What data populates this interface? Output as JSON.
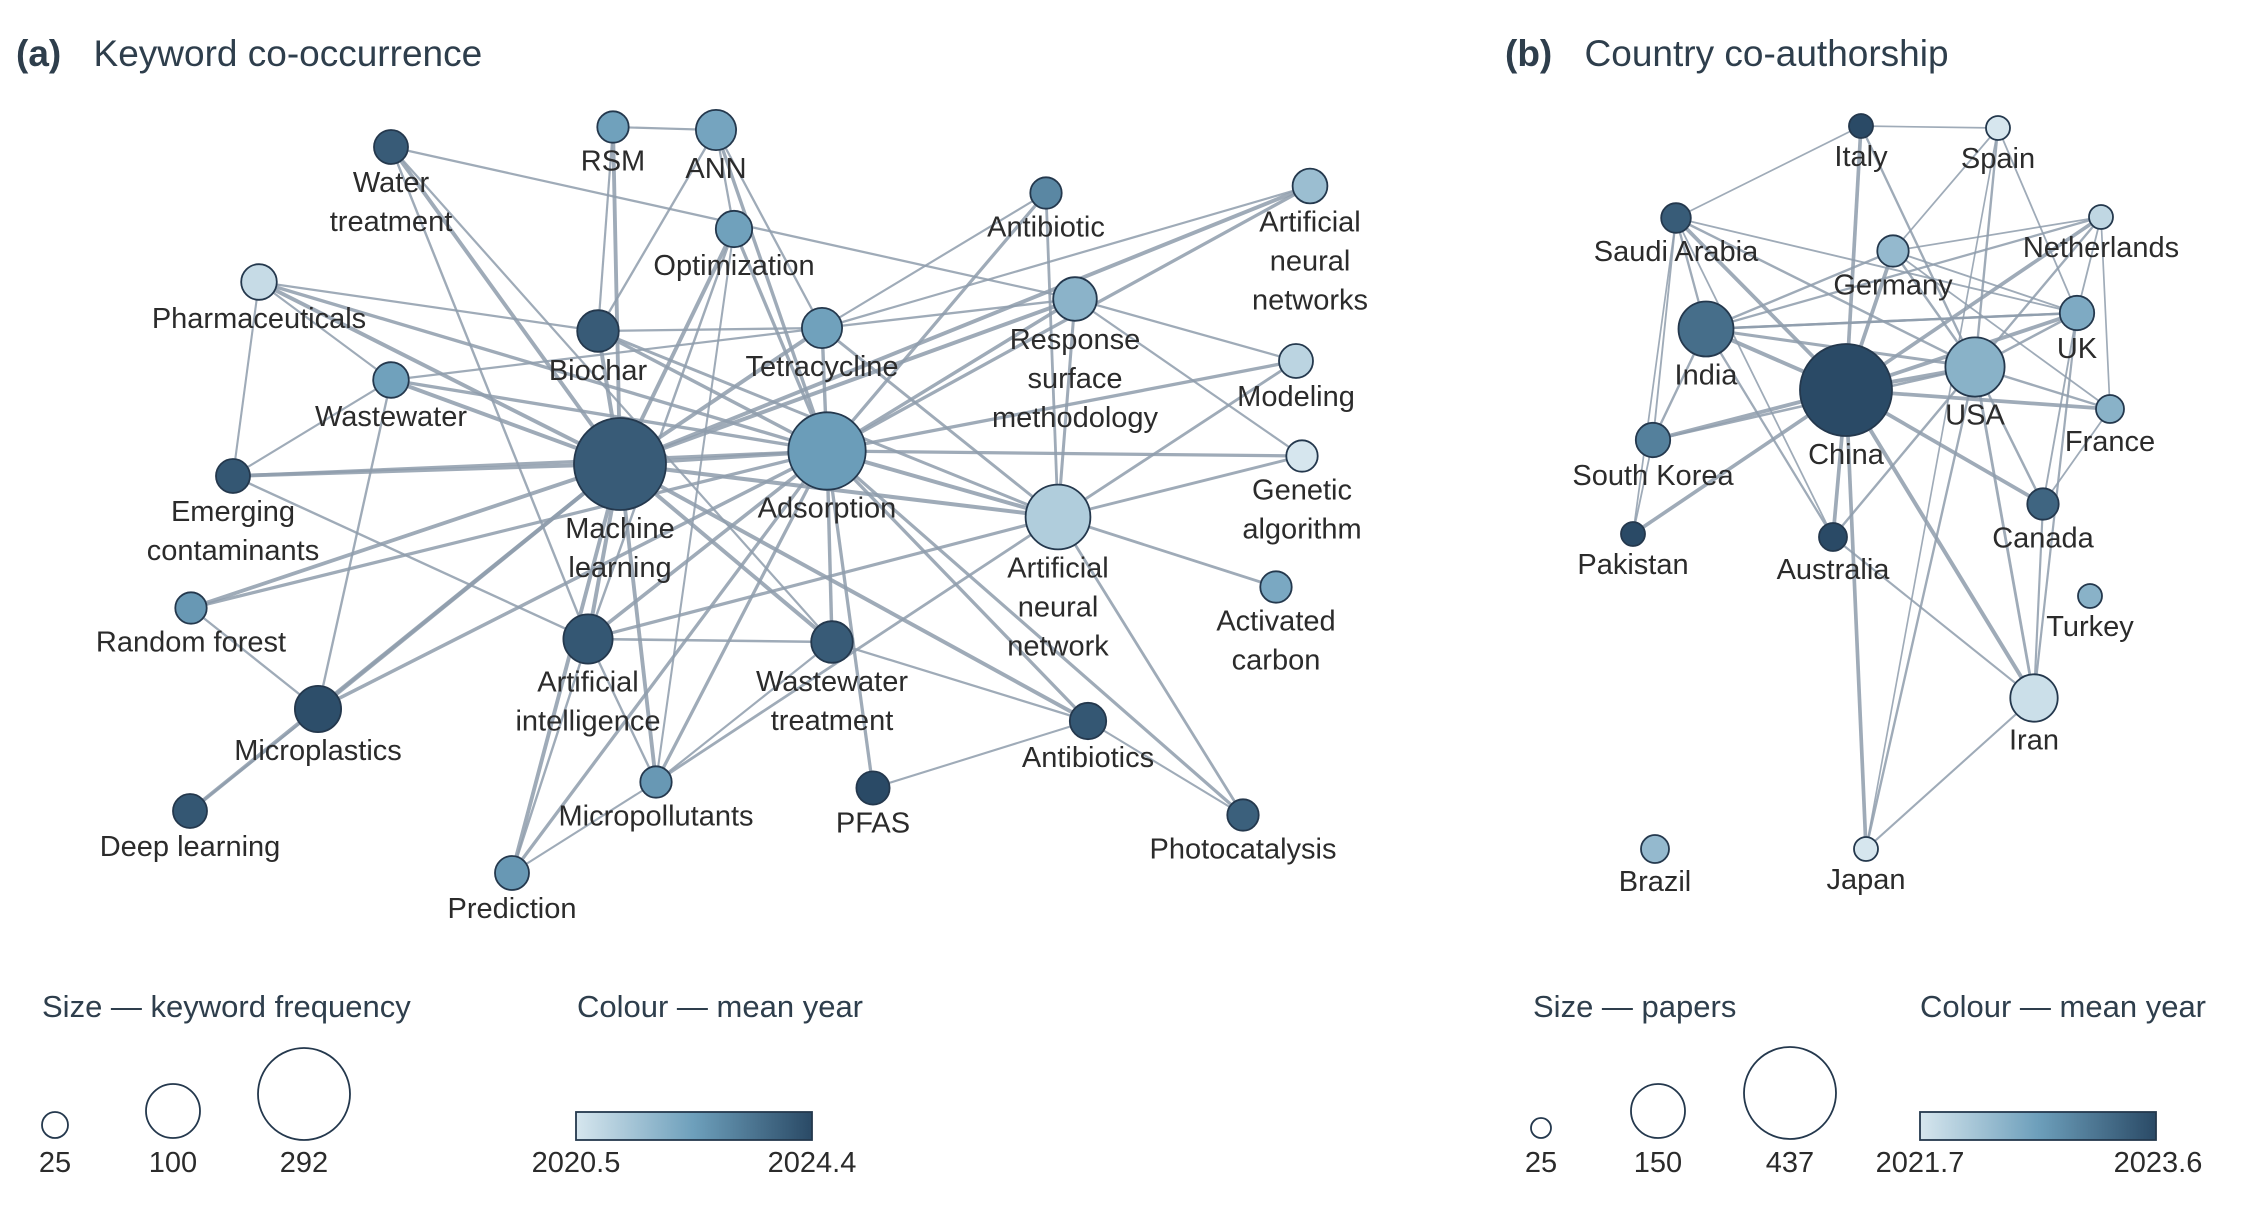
{
  "colors": {
    "scale": [
      "#d6e6ee",
      "#6d9fbb",
      "#2a4a66"
    ],
    "edge": "#8e9cab",
    "node_stroke": "#24384d",
    "text": "#2e3e4c"
  },
  "panel_a": {
    "letter": "(a)",
    "title": "Keyword co-occurrence",
    "nodes": [
      {
        "id": "water_treatment",
        "label": [
          "Water",
          "treatment"
        ],
        "size": 46,
        "year": 2024.0
      },
      {
        "id": "rsm",
        "label": [
          "RSM"
        ],
        "size": 40,
        "year": 2022.4
      },
      {
        "id": "ann",
        "label": [
          "ANN"
        ],
        "size": 62,
        "year": 2022.3
      },
      {
        "id": "optimization",
        "label": [
          "Optimization"
        ],
        "size": 52,
        "year": 2022.4
      },
      {
        "id": "antibiotic",
        "label": [
          "Antibiotic"
        ],
        "size": 40,
        "year": 2023.0
      },
      {
        "id": "artificial_neural_networks",
        "label": [
          "Artificial",
          "neural",
          "networks"
        ],
        "size": 48,
        "year": 2021.6
      },
      {
        "id": "pharmaceuticals",
        "label": [
          "Pharmaceuticals"
        ],
        "size": 50,
        "year": 2020.8
      },
      {
        "id": "biochar",
        "label": [
          "Biochar"
        ],
        "size": 66,
        "year": 2024.0
      },
      {
        "id": "tetracycline",
        "label": [
          "Tetracycline"
        ],
        "size": 62,
        "year": 2022.4
      },
      {
        "id": "response_surface_methodology",
        "label": [
          "Response",
          "surface",
          "methodology"
        ],
        "size": 72,
        "year": 2021.9
      },
      {
        "id": "modeling",
        "label": [
          "Modeling"
        ],
        "size": 46,
        "year": 2021.0
      },
      {
        "id": "wastewater",
        "label": [
          "Wastewater"
        ],
        "size": 50,
        "year": 2022.4
      },
      {
        "id": "emerging_contaminants",
        "label": [
          "Emerging",
          "contaminants"
        ],
        "size": 46,
        "year": 2024.1
      },
      {
        "id": "genetic_algorithm",
        "label": [
          "Genetic",
          "algorithm"
        ],
        "size": 40,
        "year": 2020.5
      },
      {
        "id": "machine_learning",
        "label": [
          "Machine",
          "learning"
        ],
        "size": 292,
        "year": 2024.0
      },
      {
        "id": "adsorption",
        "label": [
          "Adsorption"
        ],
        "size": 210,
        "year": 2022.5
      },
      {
        "id": "artificial_neural_network",
        "label": [
          "Artificial",
          "neural",
          "network"
        ],
        "size": 150,
        "year": 2021.2
      },
      {
        "id": "random_forest",
        "label": [
          "Random forest"
        ],
        "size": 40,
        "year": 2022.6
      },
      {
        "id": "activated_carbon",
        "label": [
          "Activated",
          "carbon"
        ],
        "size": 40,
        "year": 2022.2
      },
      {
        "id": "artificial_intelligence",
        "label": [
          "Artificial",
          "intelligence"
        ],
        "size": 90,
        "year": 2024.1
      },
      {
        "id": "wastewater_treatment",
        "label": [
          "Wastewater",
          "treatment"
        ],
        "size": 66,
        "year": 2024.0
      },
      {
        "id": "microplastics",
        "label": [
          "Microplastics"
        ],
        "size": 80,
        "year": 2024.3
      },
      {
        "id": "antibiotics",
        "label": [
          "Antibiotics"
        ],
        "size": 52,
        "year": 2024.1
      },
      {
        "id": "micropollutants",
        "label": [
          "Micropollutants"
        ],
        "size": 40,
        "year": 2022.6
      },
      {
        "id": "pfas",
        "label": [
          "PFAS"
        ],
        "size": 44,
        "year": 2024.4
      },
      {
        "id": "photocatalysis",
        "label": [
          "Photocatalysis"
        ],
        "size": 40,
        "year": 2023.9
      },
      {
        "id": "deep_learning",
        "label": [
          "Deep learning"
        ],
        "size": 46,
        "year": 2024.1
      },
      {
        "id": "prediction",
        "label": [
          "Prediction"
        ],
        "size": 46,
        "year": 2022.6
      }
    ],
    "edges": [
      [
        "rsm",
        "ann"
      ],
      [
        "rsm",
        "biochar"
      ],
      [
        "rsm",
        "machine_learning"
      ],
      [
        "ann",
        "optimization"
      ],
      [
        "ann",
        "tetracycline"
      ],
      [
        "ann",
        "adsorption"
      ],
      [
        "ann",
        "biochar"
      ],
      [
        "optimization",
        "adsorption"
      ],
      [
        "optimization",
        "machine_learning"
      ],
      [
        "optimization",
        "artificial_intelligence"
      ],
      [
        "optimization",
        "micropollutants"
      ],
      [
        "water_treatment",
        "machine_learning"
      ],
      [
        "water_treatment",
        "wastewater_treatment"
      ],
      [
        "water_treatment",
        "response_surface_methodology"
      ],
      [
        "water_treatment",
        "artificial_intelligence"
      ],
      [
        "antibiotic",
        "tetracycline"
      ],
      [
        "antibiotic",
        "artificial_neural_network"
      ],
      [
        "antibiotic",
        "adsorption"
      ],
      [
        "artificial_neural_networks",
        "tetracycline"
      ],
      [
        "artificial_neural_networks",
        "adsorption"
      ],
      [
        "artificial_neural_networks",
        "machine_learning"
      ],
      [
        "pharmaceuticals",
        "machine_learning"
      ],
      [
        "pharmaceuticals",
        "emerging_contaminants"
      ],
      [
        "pharmaceuticals",
        "adsorption"
      ],
      [
        "pharmaceuticals",
        "biochar"
      ],
      [
        "pharmaceuticals",
        "wastewater"
      ],
      [
        "biochar",
        "machine_learning"
      ],
      [
        "biochar",
        "adsorption"
      ],
      [
        "biochar",
        "tetracycline"
      ],
      [
        "biochar",
        "artificial_neural_network"
      ],
      [
        "tetracycline",
        "adsorption"
      ],
      [
        "tetracycline",
        "machine_learning"
      ],
      [
        "tetracycline",
        "artificial_neural_network"
      ],
      [
        "tetracycline",
        "response_surface_methodology"
      ],
      [
        "tetracycline",
        "wastewater"
      ],
      [
        "response_surface_methodology",
        "adsorption"
      ],
      [
        "response_surface_methodology",
        "artificial_neural_network"
      ],
      [
        "response_surface_methodology",
        "modeling"
      ],
      [
        "response_surface_methodology",
        "machine_learning"
      ],
      [
        "response_surface_methodology",
        "genetic_algorithm"
      ],
      [
        "modeling",
        "adsorption"
      ],
      [
        "modeling",
        "artificial_neural_network"
      ],
      [
        "wastewater",
        "machine_learning"
      ],
      [
        "wastewater",
        "adsorption"
      ],
      [
        "wastewater",
        "microplastics"
      ],
      [
        "wastewater",
        "emerging_contaminants"
      ],
      [
        "emerging_contaminants",
        "machine_learning"
      ],
      [
        "emerging_contaminants",
        "adsorption"
      ],
      [
        "emerging_contaminants",
        "artificial_intelligence"
      ],
      [
        "genetic_algorithm",
        "artificial_neural_network"
      ],
      [
        "genetic_algorithm",
        "adsorption"
      ],
      [
        "machine_learning",
        "adsorption"
      ],
      [
        "machine_learning",
        "artificial_neural_network"
      ],
      [
        "machine_learning",
        "artificial_intelligence"
      ],
      [
        "machine_learning",
        "wastewater_treatment"
      ],
      [
        "machine_learning",
        "microplastics"
      ],
      [
        "machine_learning",
        "antibiotics"
      ],
      [
        "machine_learning",
        "random_forest"
      ],
      [
        "machine_learning",
        "prediction"
      ],
      [
        "machine_learning",
        "micropollutants"
      ],
      [
        "machine_learning",
        "deep_learning"
      ],
      [
        "adsorption",
        "artificial_neural_network"
      ],
      [
        "adsorption",
        "artificial_intelligence"
      ],
      [
        "adsorption",
        "wastewater_treatment"
      ],
      [
        "adsorption",
        "antibiotics"
      ],
      [
        "adsorption",
        "microplastics"
      ],
      [
        "adsorption",
        "pfas"
      ],
      [
        "adsorption",
        "photocatalysis"
      ],
      [
        "adsorption",
        "micropollutants"
      ],
      [
        "adsorption",
        "prediction"
      ],
      [
        "adsorption",
        "random_forest"
      ],
      [
        "artificial_neural_network",
        "activated_carbon"
      ],
      [
        "artificial_neural_network",
        "artificial_intelligence"
      ],
      [
        "artificial_neural_network",
        "micropollutants"
      ],
      [
        "artificial_neural_network",
        "photocatalysis"
      ],
      [
        "artificial_intelligence",
        "wastewater_treatment"
      ],
      [
        "artificial_intelligence",
        "prediction"
      ],
      [
        "artificial_intelligence",
        "micropollutants"
      ],
      [
        "wastewater_treatment",
        "antibiotics"
      ],
      [
        "wastewater_treatment",
        "micropollutants"
      ],
      [
        "antibiotics",
        "photocatalysis"
      ],
      [
        "microplastics",
        "deep_learning"
      ],
      [
        "microplastics",
        "random_forest"
      ],
      [
        "micropollutants",
        "prediction"
      ],
      [
        "antibiotics",
        "pfas"
      ]
    ],
    "size_legend": {
      "title": "Size — keyword frequency",
      "ticks": [
        "25",
        "100",
        "292"
      ],
      "values": [
        25,
        100,
        292
      ]
    },
    "colour_legend": {
      "title": "Colour — mean year",
      "min": "2020.5",
      "max": "2024.4"
    }
  },
  "panel_b": {
    "letter": "(b)",
    "title": "Country co-authorship",
    "nodes": [
      {
        "id": "italy",
        "label": [
          "Italy"
        ],
        "size": 25,
        "year": 2023.6
      },
      {
        "id": "spain",
        "label": [
          "Spain"
        ],
        "size": 25,
        "year": 2021.7
      },
      {
        "id": "saudi_arabia",
        "label": [
          "Saudi Arabia"
        ],
        "size": 40,
        "year": 2023.4
      },
      {
        "id": "netherlands",
        "label": [
          "Netherlands"
        ],
        "size": 25,
        "year": 2021.9
      },
      {
        "id": "germany",
        "label": [
          "Germany"
        ],
        "size": 45,
        "year": 2022.3
      },
      {
        "id": "uk",
        "label": [
          "UK"
        ],
        "size": 55,
        "year": 2022.5
      },
      {
        "id": "india",
        "label": [
          "India"
        ],
        "size": 150,
        "year": 2023.2
      },
      {
        "id": "usa",
        "label": [
          "USA"
        ],
        "size": 175,
        "year": 2022.4
      },
      {
        "id": "china",
        "label": [
          "China"
        ],
        "size": 437,
        "year": 2023.6
      },
      {
        "id": "france",
        "label": [
          "France"
        ],
        "size": 35,
        "year": 2022.4
      },
      {
        "id": "south_korea",
        "label": [
          "South Korea"
        ],
        "size": 55,
        "year": 2023.0
      },
      {
        "id": "canada",
        "label": [
          "Canada"
        ],
        "size": 45,
        "year": 2023.3
      },
      {
        "id": "pakistan",
        "label": [
          "Pakistan"
        ],
        "size": 25,
        "year": 2023.6
      },
      {
        "id": "australia",
        "label": [
          "Australia"
        ],
        "size": 35,
        "year": 2023.6
      },
      {
        "id": "turkey",
        "label": [
          "Turkey"
        ],
        "size": 25,
        "year": 2022.4
      },
      {
        "id": "iran",
        "label": [
          "Iran"
        ],
        "size": 110,
        "year": 2021.8
      },
      {
        "id": "brazil",
        "label": [
          "Brazil"
        ],
        "size": 35,
        "year": 2022.3
      },
      {
        "id": "japan",
        "label": [
          "Japan"
        ],
        "size": 25,
        "year": 2021.7
      }
    ],
    "edges": [
      [
        "italy",
        "spain"
      ],
      [
        "italy",
        "saudi_arabia"
      ],
      [
        "italy",
        "usa"
      ],
      [
        "italy",
        "china"
      ],
      [
        "spain",
        "usa"
      ],
      [
        "spain",
        "germany"
      ],
      [
        "spain",
        "uk"
      ],
      [
        "spain",
        "japan"
      ],
      [
        "saudi_arabia",
        "china"
      ],
      [
        "saudi_arabia",
        "india"
      ],
      [
        "saudi_arabia",
        "south_korea"
      ],
      [
        "saudi_arabia",
        "usa"
      ],
      [
        "saudi_arabia",
        "pakistan"
      ],
      [
        "saudi_arabia",
        "australia"
      ],
      [
        "saudi_arabia",
        "uk"
      ],
      [
        "netherlands",
        "china"
      ],
      [
        "netherlands",
        "usa"
      ],
      [
        "netherlands",
        "uk"
      ],
      [
        "netherlands",
        "germany"
      ],
      [
        "netherlands",
        "france"
      ],
      [
        "netherlands",
        "india"
      ],
      [
        "germany",
        "china"
      ],
      [
        "germany",
        "usa"
      ],
      [
        "germany",
        "uk"
      ],
      [
        "germany",
        "france"
      ],
      [
        "uk",
        "china"
      ],
      [
        "uk",
        "usa"
      ],
      [
        "uk",
        "india"
      ],
      [
        "uk",
        "canada"
      ],
      [
        "uk",
        "iran"
      ],
      [
        "india",
        "china"
      ],
      [
        "india",
        "usa"
      ],
      [
        "india",
        "south_korea"
      ],
      [
        "india",
        "australia"
      ],
      [
        "india",
        "uk"
      ],
      [
        "usa",
        "china"
      ],
      [
        "usa",
        "canada"
      ],
      [
        "usa",
        "australia"
      ],
      [
        "usa",
        "iran"
      ],
      [
        "usa",
        "france"
      ],
      [
        "usa",
        "south_korea"
      ],
      [
        "usa",
        "japan"
      ],
      [
        "china",
        "south_korea"
      ],
      [
        "china",
        "canada"
      ],
      [
        "china",
        "australia"
      ],
      [
        "china",
        "iran"
      ],
      [
        "china",
        "pakistan"
      ],
      [
        "china",
        "japan"
      ],
      [
        "china",
        "france"
      ],
      [
        "south_korea",
        "pakistan"
      ],
      [
        "canada",
        "iran"
      ],
      [
        "canada",
        "france"
      ],
      [
        "australia",
        "iran"
      ],
      [
        "iran",
        "japan"
      ],
      [
        "germany",
        "india"
      ]
    ],
    "size_legend": {
      "title": "Size — papers",
      "ticks": [
        "25",
        "150",
        "437"
      ],
      "values": [
        25,
        150,
        437
      ]
    },
    "colour_legend": {
      "title": "Colour — mean year",
      "min": "2021.7",
      "max": "2023.6"
    }
  }
}
